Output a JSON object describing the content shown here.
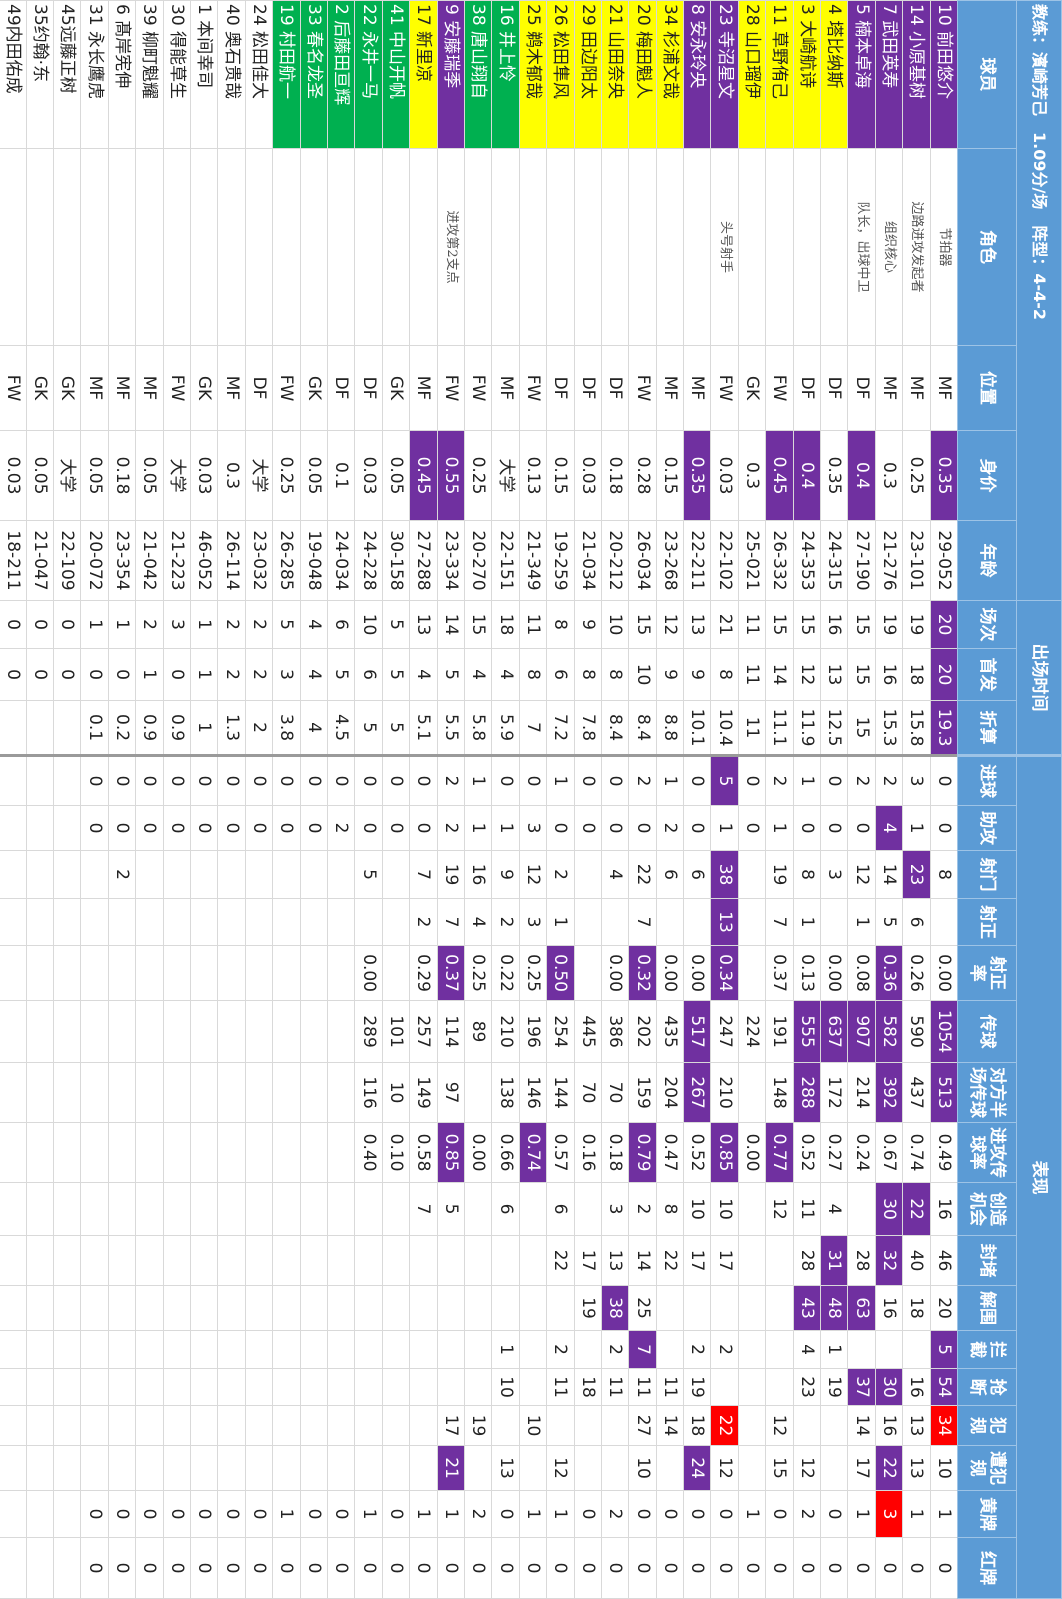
{
  "header": {
    "coach": "教练：濱崎芳己　1.09分/场　阵型：4-4-2",
    "groups": [
      "出场时间",
      "表现"
    ]
  },
  "columns": [
    "球员",
    "角色",
    "位置",
    "身价",
    "年龄",
    "场次",
    "首发",
    "折算",
    "进球",
    "助攻",
    "射门",
    "射正",
    "射正率",
    "传球",
    "对方半场传球",
    "进攻传球率",
    "创造机会",
    "封堵",
    "解围",
    "拦截",
    "抢断",
    "犯规",
    "遭犯规",
    "黄牌",
    "红牌"
  ],
  "rows": [
    {
      "band": "purple",
      "hi": [
        3,
        5,
        6,
        7,
        13,
        14,
        19,
        20
      ],
      "red": [
        21
      ],
      "cells": [
        "10 前田悠介",
        "节拍器",
        "MF",
        "0.35",
        "29-052",
        "20",
        "20",
        "19.3",
        "0",
        "0",
        "8",
        null,
        "0.00",
        "1054",
        "513",
        "0.49",
        "16",
        "46",
        "20",
        "5",
        "54",
        "34",
        "10",
        "1",
        "0"
      ]
    },
    {
      "band": "purple",
      "hi": [
        10,
        16
      ],
      "red": [],
      "cells": [
        "14 小原基树",
        "边路进攻发起者",
        "MF",
        "0.25",
        "23-101",
        "19",
        "18",
        "15.8",
        "3",
        "1",
        "23",
        "6",
        "0.26",
        "590",
        "437",
        "0.74",
        "22",
        "40",
        "18",
        null,
        "16",
        "13",
        "13",
        "1",
        "0"
      ]
    },
    {
      "band": "purple",
      "hi": [
        9,
        12,
        13,
        14,
        16,
        17,
        20,
        22
      ],
      "red": [
        23
      ],
      "cells": [
        "7 武田英寿",
        "组织核心",
        "MF",
        "0.3",
        "21-276",
        "19",
        "16",
        "15.3",
        "2",
        "4",
        "14",
        "5",
        "0.36",
        "582",
        "392",
        "0.67",
        "30",
        "32",
        "16",
        null,
        "30",
        "16",
        "22",
        "3",
        "0"
      ]
    },
    {
      "band": "purple",
      "hi": [
        3,
        13,
        18,
        20
      ],
      "red": [],
      "cells": [
        "5 楠本卓海",
        "队长，出球中卫",
        "DF",
        "0.4",
        "27-190",
        "15",
        "15",
        "15",
        "2",
        "0",
        "12",
        "1",
        "0.08",
        "907",
        "214",
        "0.24",
        null,
        "28",
        "63",
        null,
        "37",
        "14",
        "17",
        "1",
        "0"
      ]
    },
    {
      "band": "yellow",
      "hi": [
        13,
        17,
        18
      ],
      "red": [],
      "cells": [
        "4 塔比纳斯",
        null,
        "DF",
        "0.35",
        "24-315",
        "16",
        "13",
        "12.5",
        "0",
        "0",
        "3",
        null,
        "0.00",
        "637",
        "172",
        "0.27",
        "4",
        "31",
        "48",
        "1",
        "19",
        null,
        null,
        "0",
        "0"
      ]
    },
    {
      "band": "yellow",
      "hi": [
        3,
        13,
        14,
        18
      ],
      "red": [],
      "cells": [
        "3 大崎航诗",
        null,
        "DF",
        "0.4",
        "24-353",
        "15",
        "12",
        "11.9",
        "1",
        "0",
        "8",
        "1",
        "0.13",
        "555",
        "288",
        "0.52",
        "11",
        "28",
        "43",
        "4",
        "23",
        null,
        "12",
        "2",
        "0"
      ]
    },
    {
      "band": "yellow",
      "hi": [
        3,
        15
      ],
      "red": [],
      "cells": [
        "11 草野侑己",
        null,
        "FW",
        "0.45",
        "26-332",
        "15",
        "14",
        "11.1",
        "2",
        "1",
        "19",
        "7",
        "0.37",
        "191",
        "148",
        "0.77",
        "12",
        null,
        null,
        null,
        null,
        "12",
        "15",
        "0",
        "0"
      ]
    },
    {
      "band": "yellow",
      "hi": [],
      "red": [],
      "cells": [
        "28 山口瑠伊",
        null,
        "GK",
        "0.3",
        "25-021",
        "11",
        "11",
        "11",
        "0",
        "0",
        null,
        null,
        null,
        "224",
        null,
        "0.00",
        null,
        null,
        null,
        null,
        null,
        null,
        null,
        "1",
        "0"
      ]
    },
    {
      "band": "purple",
      "hi": [
        8,
        10,
        11,
        12,
        15
      ],
      "red": [
        21
      ],
      "cells": [
        "23 寺沼星文",
        "头号射手",
        "FW",
        "0.03",
        "22-102",
        "21",
        "8",
        "10.4",
        "5",
        "1",
        "38",
        "13",
        "0.34",
        "247",
        "210",
        "0.85",
        "10",
        "17",
        null,
        "2",
        null,
        "22",
        "12",
        "0",
        "0"
      ]
    },
    {
      "band": "purple",
      "hi": [
        3,
        13,
        14,
        22
      ],
      "red": [],
      "cells": [
        "8 安永玲央",
        null,
        "MF",
        "0.35",
        "22-211",
        "13",
        "9",
        "10.1",
        "0",
        "0",
        "6",
        null,
        "0.00",
        "517",
        "267",
        "0.52",
        "10",
        "17",
        null,
        "2",
        "19",
        "18",
        "24",
        "0",
        "0"
      ]
    },
    {
      "band": "yellow",
      "hi": [],
      "red": [],
      "cells": [
        "34 杉浦文哉",
        null,
        "MF",
        "0.15",
        "23-268",
        "12",
        "9",
        "8.8",
        "1",
        "2",
        "6",
        null,
        "0.00",
        "435",
        "204",
        "0.47",
        "8",
        "22",
        null,
        null,
        "11",
        "14",
        null,
        "0",
        "0"
      ]
    },
    {
      "band": "yellow",
      "hi": [
        12,
        15,
        19
      ],
      "red": [],
      "cells": [
        "20 梅田魁人",
        null,
        "FW",
        "0.28",
        "26-034",
        "15",
        "10",
        "8.4",
        "2",
        "0",
        "22",
        "7",
        "0.32",
        "202",
        "159",
        "0.79",
        "2",
        "14",
        "25",
        "7",
        "11",
        "27",
        "10",
        "0",
        "0"
      ]
    },
    {
      "band": "yellow",
      "hi": [
        18
      ],
      "red": [],
      "cells": [
        "21 山田奈央",
        null,
        "DF",
        "0.18",
        "20-212",
        "10",
        "8",
        "8.4",
        "0",
        "0",
        "4",
        null,
        "0.00",
        "386",
        "70",
        "0.18",
        "3",
        "13",
        "38",
        "2",
        "11",
        null,
        null,
        "2",
        "0"
      ]
    },
    {
      "band": "yellow",
      "hi": [],
      "red": [],
      "cells": [
        "29 田边阳太",
        null,
        "DF",
        "0.03",
        "21-034",
        "9",
        "8",
        "7.8",
        "0",
        "0",
        null,
        null,
        null,
        "445",
        "70",
        "0.16",
        null,
        "17",
        "19",
        null,
        "18",
        null,
        null,
        "0",
        "0"
      ]
    },
    {
      "band": "yellow",
      "hi": [
        12
      ],
      "red": [],
      "cells": [
        "26 松田隼风",
        null,
        "DF",
        "0.15",
        "19-259",
        "8",
        "6",
        "7.2",
        "1",
        "0",
        "2",
        "1",
        "0.50",
        "254",
        "144",
        "0.57",
        "6",
        "22",
        null,
        "2",
        "11",
        null,
        "12",
        "1",
        "0"
      ]
    },
    {
      "band": "yellow",
      "hi": [
        15
      ],
      "red": [],
      "cells": [
        "25 鹈木郁哉",
        null,
        "FW",
        "0.13",
        "21-349",
        "11",
        "8",
        "7",
        "0",
        "3",
        "12",
        "3",
        "0.25",
        "196",
        "146",
        "0.74",
        null,
        null,
        null,
        null,
        null,
        "10",
        null,
        "1",
        "0"
      ]
    },
    {
      "band": "green",
      "hi": [],
      "red": [],
      "cells": [
        "16 井上怜",
        null,
        "MF",
        "大学",
        "22-151",
        "18",
        "4",
        "5.9",
        "0",
        "1",
        "9",
        "2",
        "0.22",
        "210",
        "138",
        "0.66",
        "6",
        null,
        null,
        "1",
        "10",
        null,
        "13",
        "0",
        "0"
      ]
    },
    {
      "band": "green",
      "hi": [],
      "red": [],
      "cells": [
        "38 唐山翔自",
        null,
        "FW",
        "0.25",
        "20-270",
        "15",
        "4",
        "5.8",
        "1",
        "1",
        "16",
        "4",
        "0.25",
        "89",
        null,
        "0.00",
        null,
        null,
        null,
        null,
        null,
        "19",
        null,
        "2",
        "0"
      ]
    },
    {
      "band": "purple",
      "hi": [
        3,
        12,
        15,
        22
      ],
      "red": [],
      "cells": [
        "9 安藤瑞季",
        "进攻第2支点",
        "FW",
        "0.55",
        "23-334",
        "14",
        "5",
        "5.5",
        "2",
        "2",
        "19",
        "7",
        "0.37",
        "114",
        "97",
        "0.85",
        "5",
        null,
        null,
        null,
        null,
        "17",
        "21",
        "1",
        "0"
      ]
    },
    {
      "band": "yellow",
      "hi": [
        3
      ],
      "red": [],
      "cells": [
        "17 新里凉",
        null,
        "MF",
        "0.45",
        "27-288",
        "13",
        "4",
        "5.1",
        "0",
        "0",
        "7",
        "2",
        "0.29",
        "257",
        "149",
        "0.58",
        "7",
        null,
        null,
        null,
        null,
        null,
        null,
        "1",
        "0"
      ]
    },
    {
      "band": "green",
      "hi": [],
      "red": [],
      "cells": [
        "41 中山开帆",
        null,
        "GK",
        "0.05",
        "30-158",
        "5",
        "5",
        "5",
        "0",
        "0",
        null,
        null,
        null,
        "101",
        "10",
        "0.10",
        null,
        null,
        null,
        null,
        null,
        null,
        null,
        "0",
        "0"
      ]
    },
    {
      "band": "green",
      "hi": [],
      "red": [],
      "cells": [
        "22 永井一马",
        null,
        "DF",
        "0.03",
        "24-228",
        "10",
        "6",
        "5",
        "0",
        "0",
        "5",
        null,
        "0.00",
        "289",
        "116",
        "0.40",
        null,
        null,
        null,
        null,
        null,
        null,
        null,
        "1",
        "0"
      ]
    },
    {
      "band": "green",
      "hi": [],
      "red": [],
      "cells": [
        "2 后藤田亘辉",
        null,
        "DF",
        "0.1",
        "24-034",
        "6",
        "5",
        "4.5",
        "0",
        "2",
        null,
        null,
        null,
        null,
        null,
        null,
        null,
        null,
        null,
        null,
        null,
        null,
        null,
        "0",
        "0"
      ]
    },
    {
      "band": "green",
      "hi": [],
      "red": [],
      "cells": [
        "33 春名龙圣",
        null,
        "GK",
        "0.05",
        "19-048",
        "4",
        "4",
        "4",
        "0",
        "0",
        null,
        null,
        null,
        null,
        null,
        null,
        null,
        null,
        null,
        null,
        null,
        null,
        null,
        "0",
        "0"
      ]
    },
    {
      "band": "green",
      "hi": [],
      "red": [],
      "cells": [
        "19 村田航一",
        null,
        "FW",
        "0.25",
        "26-285",
        "5",
        "3",
        "3.8",
        "0",
        "0",
        null,
        null,
        null,
        null,
        null,
        null,
        null,
        null,
        null,
        null,
        null,
        null,
        null,
        "1",
        "0"
      ]
    },
    {
      "hi": [],
      "red": [],
      "cells": [
        "24 松田佳大",
        null,
        "DF",
        "大学",
        "23-032",
        "2",
        "2",
        "2",
        "0",
        "0",
        null,
        null,
        null,
        null,
        null,
        null,
        null,
        null,
        null,
        null,
        null,
        null,
        null,
        "0",
        "0"
      ]
    },
    {
      "hi": [],
      "red": [],
      "cells": [
        "40 奥石贵哉",
        null,
        "MF",
        "0.3",
        "26-114",
        "2",
        "2",
        "1.3",
        "0",
        "0",
        null,
        null,
        null,
        null,
        null,
        null,
        null,
        null,
        null,
        null,
        null,
        null,
        null,
        "0",
        "0"
      ]
    },
    {
      "hi": [],
      "red": [],
      "cells": [
        "1 本间幸司",
        null,
        "GK",
        "0.03",
        "46-052",
        "1",
        "1",
        "1",
        "0",
        "0",
        null,
        null,
        null,
        null,
        null,
        null,
        null,
        null,
        null,
        null,
        null,
        null,
        null,
        "0",
        "0"
      ]
    },
    {
      "hi": [],
      "red": [],
      "cells": [
        "30 得能草生",
        null,
        "FW",
        "大学",
        "21-223",
        "3",
        "0",
        "0.9",
        "0",
        "0",
        null,
        null,
        null,
        null,
        null,
        null,
        null,
        null,
        null,
        null,
        null,
        null,
        null,
        "0",
        "0"
      ]
    },
    {
      "hi": [],
      "red": [],
      "cells": [
        "39 柳町魁耀",
        null,
        "MF",
        "0.05",
        "21-042",
        "2",
        "1",
        "0.9",
        "0",
        "0",
        null,
        null,
        null,
        null,
        null,
        null,
        null,
        null,
        null,
        null,
        null,
        null,
        null,
        "0",
        "0"
      ]
    },
    {
      "hi": [],
      "red": [],
      "cells": [
        "6 髙岸宪伸",
        null,
        "MF",
        "0.18",
        "23-354",
        "1",
        "0",
        "0.2",
        "0",
        "0",
        "2",
        null,
        null,
        null,
        null,
        null,
        null,
        null,
        null,
        null,
        null,
        null,
        null,
        "0",
        "0"
      ]
    },
    {
      "hi": [],
      "red": [],
      "cells": [
        "31 永长鹰虎",
        null,
        "MF",
        "0.05",
        "20-072",
        "1",
        "0",
        "0.1",
        "0",
        "0",
        null,
        null,
        null,
        null,
        null,
        null,
        null,
        null,
        null,
        null,
        null,
        null,
        null,
        "0",
        "0"
      ]
    },
    {
      "hi": [],
      "red": [],
      "cells": [
        "45远藤正树",
        null,
        "GK",
        "大学",
        "22-109",
        "0",
        "0",
        null,
        null,
        null,
        null,
        null,
        null,
        null,
        null,
        null,
        null,
        null,
        null,
        null,
        null,
        null,
        null,
        null,
        null
      ]
    },
    {
      "hi": [],
      "red": [],
      "cells": [
        "35约翰·东",
        null,
        "GK",
        "0.05",
        "21-047",
        "0",
        "0",
        null,
        null,
        null,
        null,
        null,
        null,
        null,
        null,
        null,
        null,
        null,
        null,
        null,
        null,
        null,
        null,
        null,
        null
      ]
    },
    {
      "hi": [],
      "red": [],
      "cells": [
        "49内田佑成",
        null,
        "FW",
        "0.03",
        "18-211",
        "0",
        "0",
        null,
        null,
        null,
        null,
        null,
        null,
        null,
        null,
        null,
        null,
        null,
        null,
        null,
        null,
        null,
        null,
        null,
        null
      ]
    }
  ]
}
